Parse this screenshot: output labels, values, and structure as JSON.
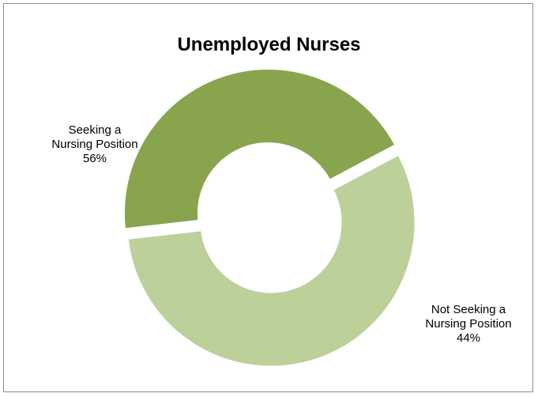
{
  "chart_data": {
    "type": "pie",
    "title": "Unemployed Nurses",
    "donut": true,
    "legend": "none",
    "slices": [
      {
        "label_line1": "Seeking a",
        "label_line2": "Nursing Position",
        "percent_label": "56%",
        "value": 56,
        "color": "#bcd09a"
      },
      {
        "label_line1": "Not Seeking a",
        "label_line2": "Nursing Position",
        "percent_label": "44%",
        "value": 44,
        "color": "#88a54e"
      }
    ]
  }
}
